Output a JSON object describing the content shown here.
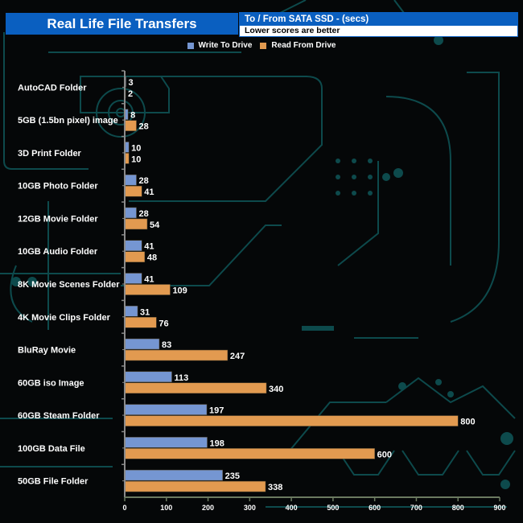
{
  "header": {
    "title": "Real Life File Transfers",
    "subtitle": "To /  From SATA SSD - (secs)",
    "note": "Lower scores are better"
  },
  "colors": {
    "write": "#7596d2",
    "read": "#e29a50",
    "title_bg": "#0a5fc0"
  },
  "chart_data": {
    "type": "bar",
    "orientation": "horizontal",
    "title": "Real Life File Transfers",
    "subtitle": "To /  From SATA SSD - (secs)",
    "note": "Lower scores are better",
    "categories": [
      "AutoCAD Folder",
      "5GB (1.5bn pixel) image",
      "3D Print Folder",
      "10GB Photo Folder",
      "12GB Movie Folder",
      "10GB Audio Folder",
      "8K Movie Scenes Folder",
      "4K Movie Clips Folder",
      "BluRay Movie",
      "60GB iso Image",
      "60GB Steam Folder",
      "100GB Data File",
      "50GB File Folder"
    ],
    "series": [
      {
        "name": "Write To  Drive",
        "color": "#7596d2",
        "values": [
          3,
          8,
          10,
          28,
          28,
          41,
          41,
          31,
          83,
          113,
          197,
          198,
          235
        ]
      },
      {
        "name": "Read From  Drive",
        "color": "#e29a50",
        "values": [
          2,
          28,
          10,
          41,
          54,
          48,
          109,
          76,
          247,
          340,
          800,
          600,
          338
        ]
      }
    ],
    "xlim": [
      0,
      900
    ],
    "xticks": [
      0,
      100,
      200,
      300,
      400,
      500,
      600,
      700,
      800,
      900
    ],
    "xlabel": "",
    "ylabel": "",
    "grid": false,
    "legend": "top-center"
  }
}
